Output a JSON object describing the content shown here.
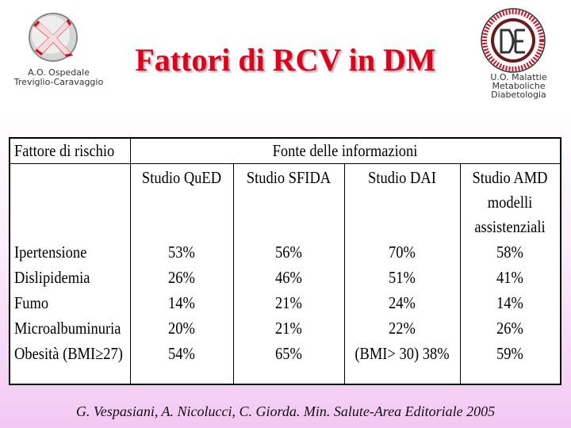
{
  "header": {
    "hospital_lines": [
      "A.O. Ospedale",
      "Treviglio-Caravaggio"
    ],
    "title": "Fattori di RCV in DM",
    "unit_lines": [
      "U.O. Malattie",
      "Metaboliche",
      "Diabetologia"
    ]
  },
  "table": {
    "col0_header": "Fattore di rischio",
    "group_header": "Fonte delle informazioni",
    "studies": [
      {
        "lines": [
          "Studio QuED"
        ]
      },
      {
        "lines": [
          "Studio SFIDA"
        ]
      },
      {
        "lines": [
          "Studio DAI"
        ]
      },
      {
        "lines": [
          "Studio AMD",
          "modelli",
          "assistenziali"
        ]
      }
    ],
    "rows": [
      {
        "factor": "Ipertensione",
        "values": [
          "53%",
          "56%",
          "70%",
          "58%"
        ]
      },
      {
        "factor": "Dislipidemia",
        "values": [
          "26%",
          "46%",
          "51%",
          "41%"
        ]
      },
      {
        "factor": "Fumo",
        "values": [
          "14%",
          "21%",
          "24%",
          "14%"
        ]
      },
      {
        "factor": "Microalbuminuria",
        "values": [
          "20%",
          "21%",
          "22%",
          "26%"
        ]
      },
      {
        "factor": "Obesità (BMI≥27)",
        "values": [
          "54%",
          "65%",
          "(BMI> 30) 38%",
          "59%"
        ]
      }
    ]
  },
  "citation": "G. Vespasiani, A. Nicolucci, C. Giorda. Min. Salute-Area Editoriale 2005",
  "colors": {
    "title": "#e0001a",
    "logo_cross": "#cc1122"
  }
}
